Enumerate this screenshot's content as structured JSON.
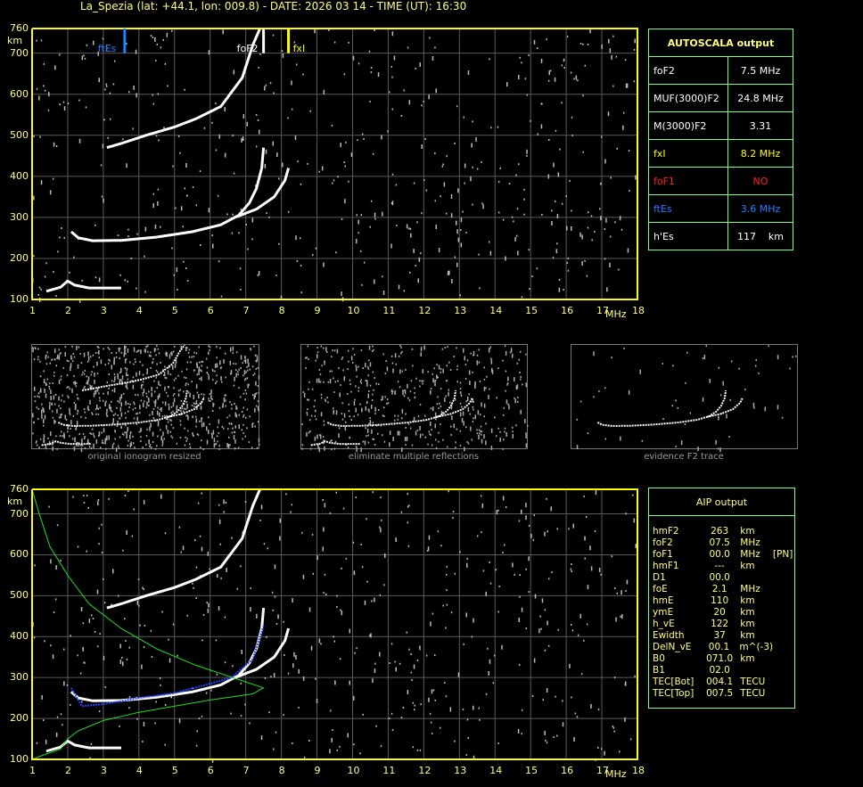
{
  "title": "La_Spezia (lat: +44.1, lon: 009.8) - DATE: 2026 03 14 - TIME (UT): 16:30",
  "colors": {
    "axis": "#ffff00",
    "grid": "#5a5a5a",
    "trace": "#ffffff",
    "ftEs": "#1e7fff",
    "fxI": "#ffff00",
    "foF1": "#ff2020",
    "aip_trace": "#2040ff",
    "profile": "#20e020",
    "panel_border": "#7fff7f"
  },
  "axis": {
    "y_unit": "km",
    "x_unit": "MHz",
    "y_ticks": [
      "760",
      "700",
      "600",
      "500",
      "400",
      "300",
      "200",
      "100"
    ],
    "x_ticks": [
      "1",
      "2",
      "3",
      "4",
      "5",
      "6",
      "7",
      "8",
      "9",
      "10",
      "11",
      "12",
      "13",
      "14",
      "15",
      "16",
      "17",
      "18"
    ]
  },
  "markers": {
    "ftEs": {
      "label": "ftEs",
      "freq": 3.6
    },
    "foF2": {
      "label": "foF2",
      "freq": 7.5
    },
    "fxI": {
      "label": "fxI",
      "freq": 8.2
    }
  },
  "autoscala": {
    "title": "AUTOSCALA output",
    "rows": [
      {
        "label": "foF2",
        "value": "7.5 MHz",
        "color": "#ffffff"
      },
      {
        "label": "MUF(3000)F2",
        "value": "24.8 MHz",
        "color": "#ffffff"
      },
      {
        "label": "M(3000)F2",
        "value": "3.31",
        "color": "#ffffff"
      },
      {
        "label": "fxI",
        "value": "8.2 MHz",
        "color": "#ffff00"
      },
      {
        "label": "foF1",
        "value": "NO",
        "color": "#ff2020"
      },
      {
        "label": "ftEs",
        "value": "3.6 MHz",
        "color": "#1e7fff"
      },
      {
        "label": "h'Es",
        "value": "117    km",
        "color": "#ffffff"
      }
    ]
  },
  "thumbnails": [
    {
      "caption": "original ionogram resized"
    },
    {
      "caption": "eliminate multiple reflections"
    },
    {
      "caption": "evidence F2 trace"
    }
  ],
  "aip": {
    "title": "AIP output",
    "rows": [
      [
        "hmF2",
        "263",
        "km",
        ""
      ],
      [
        "foF2",
        "07.5",
        "MHz",
        ""
      ],
      [
        "foF1",
        "00.0",
        "MHz",
        "[PN]"
      ],
      [
        "hmF1",
        "---",
        "km",
        ""
      ],
      [
        "D1",
        "00.0",
        "",
        ""
      ],
      [
        "foE",
        "2.1",
        "MHz",
        ""
      ],
      [
        "hmE",
        "110",
        "km",
        ""
      ],
      [
        "ymE",
        "20",
        "km",
        ""
      ],
      [
        "h_vE",
        "122",
        "km",
        ""
      ],
      [
        "Ewidth",
        "37",
        "km",
        ""
      ],
      [
        "DelN_vE",
        "00.1",
        "m^(-3)",
        ""
      ],
      [
        "B0",
        "071.0",
        "km",
        ""
      ],
      [
        "B1",
        "02.0",
        "",
        ""
      ],
      [
        "TEC[Bot]",
        "004.1",
        "TECU",
        ""
      ],
      [
        "TEC[Top]",
        "007.5",
        "TECU",
        ""
      ]
    ]
  },
  "chart_data": {
    "type": "scatter",
    "xlabel": "MHz",
    "ylabel": "km",
    "xlim": [
      1,
      18
    ],
    "ylim": [
      100,
      760
    ],
    "grid": true,
    "series": [
      {
        "role": "F2 ordinary trace",
        "points": [
          [
            2.1,
            265
          ],
          [
            2.3,
            250
          ],
          [
            2.7,
            243
          ],
          [
            3.5,
            244
          ],
          [
            4.5,
            252
          ],
          [
            5.5,
            265
          ],
          [
            6.3,
            282
          ],
          [
            6.8,
            305
          ],
          [
            7.1,
            335
          ],
          [
            7.3,
            370
          ],
          [
            7.45,
            420
          ],
          [
            7.5,
            470
          ]
        ]
      },
      {
        "role": "F2 extraordinary trace",
        "points": [
          [
            6.7,
            300
          ],
          [
            7.3,
            320
          ],
          [
            7.8,
            350
          ],
          [
            8.1,
            390
          ],
          [
            8.2,
            420
          ]
        ]
      },
      {
        "role": "second hop",
        "points": [
          [
            3.1,
            470
          ],
          [
            3.5,
            480
          ],
          [
            4.2,
            500
          ],
          [
            5,
            520
          ],
          [
            5.6,
            540
          ],
          [
            6.3,
            570
          ],
          [
            6.9,
            640
          ],
          [
            7.2,
            720
          ],
          [
            7.4,
            760
          ]
        ]
      },
      {
        "role": "Es trace",
        "points": [
          [
            1.4,
            120
          ],
          [
            1.8,
            130
          ],
          [
            2.0,
            145
          ],
          [
            2.2,
            135
          ],
          [
            2.6,
            128
          ],
          [
            3.5,
            128
          ]
        ]
      },
      {
        "role": "AIP fitted trace",
        "panel": "bottom",
        "points": [
          [
            2.1,
            275
          ],
          [
            2.4,
            230
          ],
          [
            3,
            235
          ],
          [
            4,
            250
          ],
          [
            5,
            262
          ],
          [
            6,
            285
          ],
          [
            6.6,
            300
          ],
          [
            7.2,
            345
          ],
          [
            7.4,
            400
          ],
          [
            7.5,
            425
          ]
        ]
      },
      {
        "role": "AIP electron density profile",
        "panel": "bottom",
        "points": [
          [
            1,
            760
          ],
          [
            1.2,
            700
          ],
          [
            1.5,
            620
          ],
          [
            2,
            550
          ],
          [
            2.6,
            480
          ],
          [
            3.5,
            420
          ],
          [
            4.5,
            370
          ],
          [
            5.6,
            330
          ],
          [
            6.8,
            295
          ],
          [
            7.5,
            275
          ],
          [
            7.2,
            260
          ],
          [
            6,
            245
          ],
          [
            4,
            215
          ],
          [
            3,
            195
          ],
          [
            2.3,
            170
          ],
          [
            2,
            150
          ],
          [
            1.8,
            125
          ],
          [
            1.3,
            110
          ],
          [
            1,
            100
          ]
        ]
      }
    ]
  }
}
